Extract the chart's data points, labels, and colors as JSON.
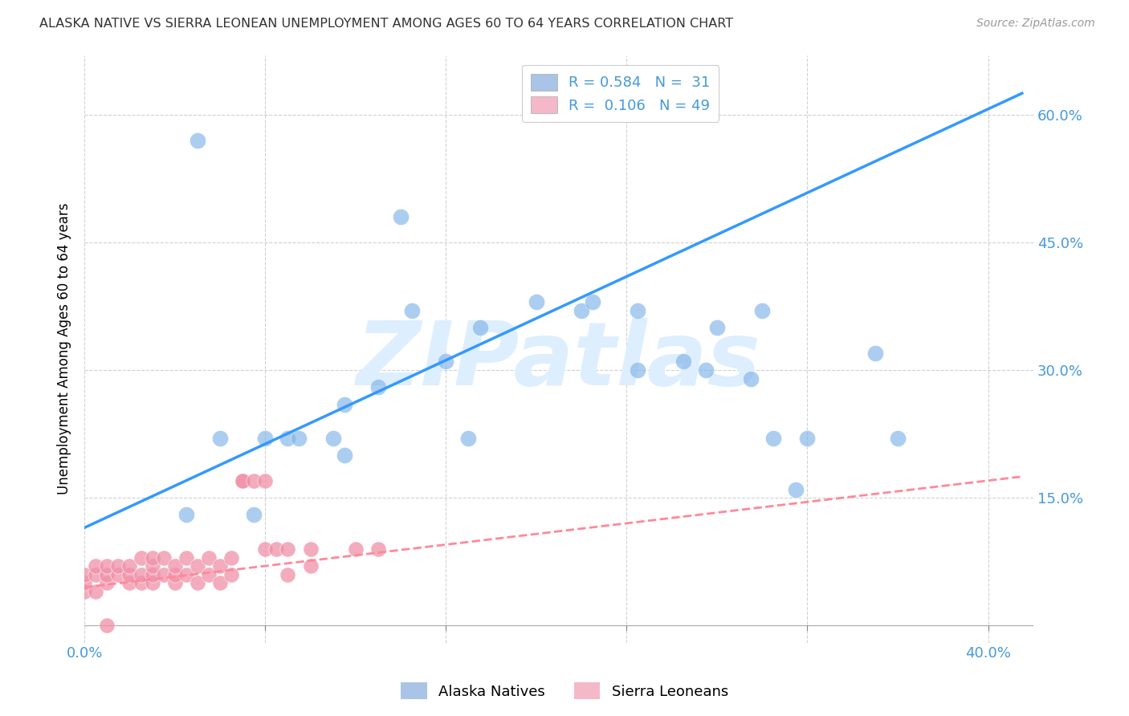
{
  "title": "ALASKA NATIVE VS SIERRA LEONEAN UNEMPLOYMENT AMONG AGES 60 TO 64 YEARS CORRELATION CHART",
  "source": "Source: ZipAtlas.com",
  "ylabel_label": "Unemployment Among Ages 60 to 64 years",
  "xlim": [
    0.0,
    0.42
  ],
  "ylim": [
    -0.02,
    0.67
  ],
  "x_ticks": [
    0.0,
    0.08,
    0.16,
    0.24,
    0.32,
    0.4
  ],
  "y_ticks": [
    0.0,
    0.15,
    0.3,
    0.45,
    0.6
  ],
  "legend_alaska_color": "#aac4e8",
  "legend_sierra_color": "#f4b8c8",
  "scatter_alaska_color": "#7fb3e8",
  "scatter_sierra_color": "#f090a8",
  "line_alaska_color": "#3399ff",
  "line_sierra_color": "#ff8899",
  "watermark": "ZIPatlas",
  "watermark_color": "#ddeeff",
  "background_color": "#ffffff",
  "grid_color": "#cccccc",
  "title_color": "#333333",
  "tick_label_color": "#4499dd",
  "alaska_line_x0": 0.0,
  "alaska_line_y0": 0.115,
  "alaska_line_x1": 0.415,
  "alaska_line_y1": 0.625,
  "sierra_line_x0": 0.0,
  "sierra_line_y0": 0.045,
  "sierra_line_x1": 0.415,
  "sierra_line_y1": 0.175,
  "alaska_points_x": [
    0.045,
    0.075,
    0.09,
    0.095,
    0.11,
    0.115,
    0.115,
    0.13,
    0.145,
    0.16,
    0.17,
    0.175,
    0.2,
    0.22,
    0.225,
    0.245,
    0.245,
    0.265,
    0.275,
    0.28,
    0.295,
    0.3,
    0.305,
    0.315,
    0.32,
    0.35,
    0.36,
    0.05,
    0.06,
    0.08,
    0.14
  ],
  "alaska_points_y": [
    0.13,
    0.13,
    0.22,
    0.22,
    0.22,
    0.2,
    0.26,
    0.28,
    0.37,
    0.31,
    0.22,
    0.35,
    0.38,
    0.37,
    0.38,
    0.37,
    0.3,
    0.31,
    0.3,
    0.35,
    0.29,
    0.37,
    0.22,
    0.16,
    0.22,
    0.32,
    0.22,
    0.57,
    0.22,
    0.22,
    0.48
  ],
  "sierra_points_x": [
    0.0,
    0.0,
    0.0,
    0.005,
    0.005,
    0.005,
    0.01,
    0.01,
    0.01,
    0.015,
    0.015,
    0.02,
    0.02,
    0.02,
    0.025,
    0.025,
    0.025,
    0.03,
    0.03,
    0.03,
    0.03,
    0.035,
    0.035,
    0.04,
    0.04,
    0.04,
    0.045,
    0.045,
    0.05,
    0.05,
    0.055,
    0.055,
    0.06,
    0.06,
    0.065,
    0.065,
    0.07,
    0.07,
    0.075,
    0.08,
    0.08,
    0.085,
    0.09,
    0.09,
    0.1,
    0.1,
    0.12,
    0.13,
    0.01
  ],
  "sierra_points_y": [
    0.04,
    0.05,
    0.06,
    0.04,
    0.06,
    0.07,
    0.05,
    0.06,
    0.07,
    0.06,
    0.07,
    0.05,
    0.06,
    0.07,
    0.05,
    0.06,
    0.08,
    0.05,
    0.06,
    0.07,
    0.08,
    0.06,
    0.08,
    0.05,
    0.06,
    0.07,
    0.06,
    0.08,
    0.05,
    0.07,
    0.06,
    0.08,
    0.05,
    0.07,
    0.06,
    0.08,
    0.17,
    0.17,
    0.17,
    0.17,
    0.09,
    0.09,
    0.09,
    0.06,
    0.07,
    0.09,
    0.09,
    0.09,
    0.0
  ]
}
